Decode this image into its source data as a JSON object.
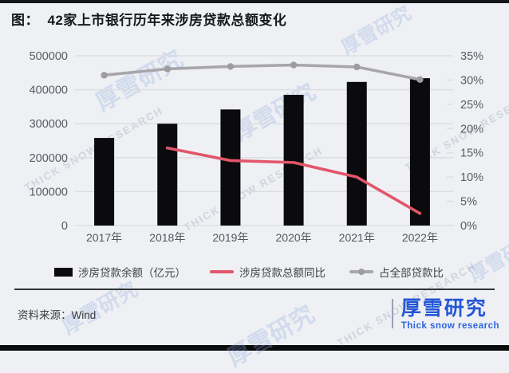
{
  "page": {
    "title": "图：  42家上市银行历年来涉房贷款总额变化",
    "source": "资料来源：Wind"
  },
  "footer_logo": {
    "name": "厚雪研究",
    "subtitle": "Thick snow research"
  },
  "watermark": {
    "glyph": "厚雪研究",
    "text": "Thick snow research"
  },
  "colors": {
    "background": "#eef0f3",
    "bar": "#0b0b0d",
    "yoy_line": "#e2556a",
    "share_line": "#a7a7aa",
    "share_marker": "#9d9da0",
    "grid": "#dadce1",
    "axis_text": "#595c63",
    "title_text": "#17181c",
    "logo_blue": "#2456d6"
  },
  "chart_data": {
    "type": "combo",
    "title": "42家上市银行历年来涉房贷款总额变化",
    "categories": [
      "2017年",
      "2018年",
      "2019年",
      "2020年",
      "2021年",
      "2022年"
    ],
    "series": [
      {
        "name": "涉房贷款余额（亿元）",
        "type": "bar",
        "axis": "left",
        "color": "#0b0b0d",
        "values": [
          258000,
          300000,
          342000,
          385000,
          423000,
          434000
        ]
      },
      {
        "name": "涉房贷款总额同比",
        "type": "line",
        "axis": "right",
        "color": "#e2556a",
        "values": [
          null,
          16.0,
          13.4,
          13.0,
          10.0,
          2.5
        ]
      },
      {
        "name": "占全部贷款比",
        "type": "line",
        "axis": "right",
        "color": "#a7a7aa",
        "marker": "circle",
        "values": [
          31.0,
          32.3,
          32.8,
          33.1,
          32.7,
          30.1
        ]
      }
    ],
    "left_axis": {
      "min": 0,
      "max": 500000,
      "tick_step": 100000,
      "ticks": [
        "500000",
        "400000",
        "300000",
        "200000",
        "100000",
        "0"
      ]
    },
    "right_axis": {
      "min": 0,
      "max": 35,
      "tick_step": 5,
      "ticks": [
        "35%",
        "30%",
        "25%",
        "20%",
        "15%",
        "10%",
        "5%",
        "0%"
      ]
    },
    "grid": "horizontal",
    "legend_position": "bottom"
  }
}
